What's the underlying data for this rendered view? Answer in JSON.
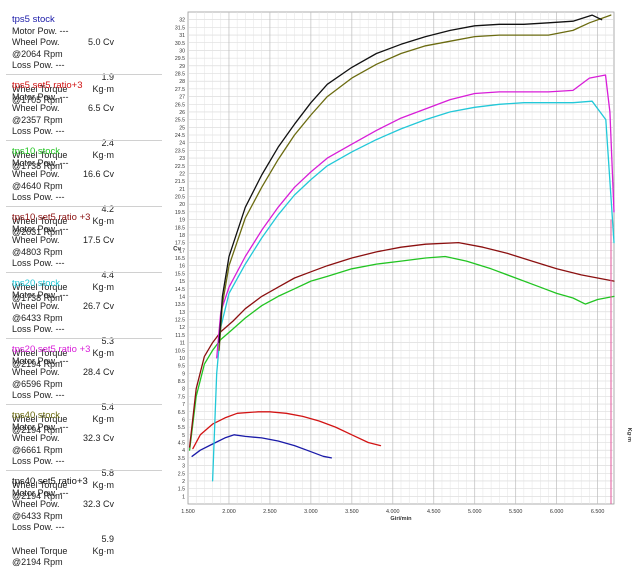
{
  "legend": [
    {
      "title": "tps5 stock",
      "color": "#1a1aa8",
      "motor": "Motor Pow.   ---",
      "wheel_val": "5.0 Cv",
      "wheel_rpm": "@2064 Rpm",
      "loss": "Loss Pow.   ---",
      "torque_val": "1.9 Kg·m",
      "torque_rpm": "@1705 Rpm"
    },
    {
      "title": "tps5 set5 ratio+3",
      "color": "#d21414",
      "motor": "Motor Pow.   ---",
      "wheel_val": "6.5 Cv",
      "wheel_rpm": "@2357 Rpm",
      "loss": "Loss Pow.   ---",
      "torque_val": "2.4 Kg·m",
      "torque_rpm": "@1738 Rpm"
    },
    {
      "title": "tps10 stock",
      "color": "#22c422",
      "motor": "Motor Pow.   ---",
      "wheel_val": "16.6 Cv",
      "wheel_rpm": "@4640 Rpm",
      "loss": "Loss Pow.   ---",
      "torque_val": "4.2 Kg·m",
      "torque_rpm": "@2031 Rpm"
    },
    {
      "title": "tps10 set5 ratio +3",
      "color": "#8b1010",
      "motor": "Motor Pow.   ---",
      "wheel_val": "17.5 Cv",
      "wheel_rpm": "@4803 Rpm",
      "loss": "Loss Pow.   ---",
      "torque_val": "4.4 Kg·m",
      "torque_rpm": "@1738 Rpm"
    },
    {
      "title": "tps20 stock",
      "color": "#22c8d8",
      "motor": "Motor Pow.   ---",
      "wheel_val": "26.7 Cv",
      "wheel_rpm": "@6433 Rpm",
      "loss": "Loss Pow.   ---",
      "torque_val": "5.3 Kg·m",
      "torque_rpm": "@2194 Rpm"
    },
    {
      "title": "tps20 set5 ratio +3",
      "color": "#d81ed8",
      "motor": "Motor Pow.   ---",
      "wheel_val": "28.4 Cv",
      "wheel_rpm": "@6596 Rpm",
      "loss": "Loss Pow.   ---",
      "torque_val": "5.4 Kg·m",
      "torque_rpm": "@2194 Rpm"
    },
    {
      "title": "tps40 stock",
      "color": "#6b6b10",
      "motor": "Motor Pow.   ---",
      "wheel_val": "32.3 Cv",
      "wheel_rpm": "@6661 Rpm",
      "loss": "Loss Pow.   ---",
      "torque_val": "5.8 Kg·m",
      "torque_rpm": "@2194 Rpm"
    },
    {
      "title": "tps40 set5 ratio+3",
      "color": "#111111",
      "motor": "Motor Pow.   ---",
      "wheel_val": "32.3 Cv",
      "wheel_rpm": "@6433 Rpm",
      "loss": "Loss Pow.   ---",
      "torque_val": "5.9 Kg·m",
      "torque_rpm": "@2194 Rpm"
    }
  ],
  "legend_labels": {
    "wheel": "Wheel Pow.",
    "torque": "Wheel Torque"
  },
  "chart_data": {
    "type": "line",
    "xlabel": "Giri/min",
    "ylabel_left": "Cv",
    "ylabel_right": "Kg·m",
    "xlim": [
      1500,
      6700
    ],
    "ylim": [
      0.5,
      32.5
    ],
    "x_ticks": [
      "1.500",
      "2.000",
      "2.500",
      "3.000",
      "3.500",
      "4.000",
      "4.500",
      "5.000",
      "5.500",
      "6.000",
      "6.500"
    ],
    "x_tick_values": [
      1500,
      2000,
      2500,
      3000,
      3500,
      4000,
      4500,
      5000,
      5500,
      6000,
      6500
    ],
    "y_ticks": [
      1,
      1.5,
      2,
      2.5,
      3,
      3.5,
      4,
      4.5,
      5,
      5.5,
      6,
      6.5,
      7,
      7.5,
      8,
      8.5,
      9,
      9.5,
      10,
      10.5,
      11,
      11.5,
      12,
      12.5,
      13,
      13.5,
      14,
      14.5,
      15,
      15.5,
      16,
      16.5,
      17,
      17.5,
      18,
      18.5,
      19,
      19.5,
      20,
      20.5,
      21,
      21.5,
      22,
      22.5,
      23,
      23.5,
      24,
      24.5,
      25,
      25.5,
      26,
      26.5,
      27,
      27.5,
      28,
      28.5,
      29,
      29.5,
      30,
      30.5,
      31,
      31.5,
      32
    ],
    "grid": true,
    "series": [
      {
        "name": "tps5 stock",
        "color": "#1a1aa8",
        "x": [
          1550,
          1650,
          1800,
          1950,
          2064,
          2200,
          2400,
          2600,
          2800,
          3000,
          3150,
          3250
        ],
        "y": [
          3.6,
          4.0,
          4.4,
          4.8,
          5.0,
          4.9,
          4.8,
          4.6,
          4.3,
          3.9,
          3.6,
          3.5
        ]
      },
      {
        "name": "tps5 set5 ratio+3",
        "color": "#d21414",
        "x": [
          1560,
          1650,
          1800,
          1950,
          2100,
          2357,
          2500,
          2700,
          2900,
          3100,
          3300,
          3500,
          3700,
          3850
        ],
        "y": [
          4.1,
          5.0,
          5.7,
          6.1,
          6.4,
          6.5,
          6.5,
          6.4,
          6.2,
          5.9,
          5.5,
          5.0,
          4.5,
          4.3
        ]
      },
      {
        "name": "tps10 stock",
        "color": "#22c422",
        "x": [
          1520,
          1600,
          1700,
          1800,
          1900,
          2031,
          2200,
          2400,
          2600,
          2800,
          3000,
          3200,
          3500,
          3800,
          4100,
          4400,
          4640,
          4900,
          5200,
          5500,
          5800,
          6000,
          6200,
          6350,
          6500,
          6700
        ],
        "y": [
          4.0,
          7.5,
          9.6,
          10.5,
          11.2,
          11.8,
          12.6,
          13.4,
          14.0,
          14.5,
          15.0,
          15.3,
          15.8,
          16.1,
          16.3,
          16.5,
          16.6,
          16.3,
          15.8,
          15.2,
          14.6,
          14.2,
          13.9,
          13.5,
          13.8,
          14.0
        ]
      },
      {
        "name": "tps10 set5 ratio +3",
        "color": "#8b1010",
        "x": [
          1520,
          1600,
          1700,
          1800,
          1900,
          2050,
          2200,
          2400,
          2600,
          2800,
          3000,
          3200,
          3500,
          3800,
          4100,
          4400,
          4803,
          5100,
          5400,
          5700,
          6000,
          6300,
          6500,
          6700
        ],
        "y": [
          4.2,
          8.0,
          10.1,
          11.0,
          11.7,
          12.4,
          13.2,
          14.0,
          14.6,
          15.2,
          15.6,
          16.0,
          16.5,
          16.9,
          17.2,
          17.4,
          17.5,
          17.2,
          16.8,
          16.3,
          15.8,
          15.4,
          15.2,
          15.0
        ]
      },
      {
        "name": "tps20 stock",
        "color": "#22c8d8",
        "x": [
          1800,
          1850,
          1900,
          2000,
          2200,
          2400,
          2600,
          2800,
          3000,
          3200,
          3500,
          3800,
          4100,
          4400,
          4700,
          5000,
          5300,
          5600,
          5900,
          6200,
          6433,
          6600,
          6700
        ],
        "y": [
          2.0,
          9.0,
          12.0,
          14.2,
          16.1,
          17.8,
          19.3,
          20.6,
          21.6,
          22.5,
          23.4,
          24.2,
          24.9,
          25.5,
          26.0,
          26.3,
          26.5,
          26.6,
          26.6,
          26.6,
          26.7,
          25.5,
          17.5
        ]
      },
      {
        "name": "tps20 set5 ratio +3",
        "color": "#d81ed8",
        "x": [
          1850,
          1900,
          2000,
          2200,
          2400,
          2600,
          2800,
          3000,
          3200,
          3500,
          3800,
          4100,
          4400,
          4700,
          5000,
          5300,
          5600,
          5900,
          6200,
          6400,
          6596,
          6650,
          6700
        ],
        "y": [
          10.0,
          13.0,
          14.6,
          16.6,
          18.3,
          19.8,
          21.1,
          22.1,
          23.0,
          23.9,
          24.8,
          25.6,
          26.2,
          26.8,
          27.2,
          27.3,
          27.3,
          27.3,
          27.4,
          28.2,
          28.4,
          26.0,
          19.5
        ]
      },
      {
        "name": "tps40 stock",
        "color": "#6b6b10",
        "x": [
          1880,
          1920,
          2000,
          2200,
          2400,
          2600,
          2800,
          3000,
          3200,
          3500,
          3800,
          4100,
          4400,
          4700,
          5000,
          5300,
          5600,
          5900,
          6200,
          6400,
          6661
        ],
        "y": [
          10.5,
          13.5,
          16.0,
          19.1,
          21.1,
          22.9,
          24.5,
          25.8,
          27.0,
          28.2,
          29.1,
          29.8,
          30.3,
          30.6,
          30.9,
          31.0,
          31.0,
          31.0,
          31.3,
          31.8,
          32.3
        ]
      },
      {
        "name": "tps40 set5 ratio+3",
        "color": "#111111",
        "x": [
          1880,
          1920,
          2000,
          2200,
          2400,
          2600,
          2800,
          3000,
          3200,
          3500,
          3800,
          4100,
          4400,
          4700,
          5000,
          5300,
          5600,
          5900,
          6200,
          6433,
          6550
        ],
        "y": [
          11.0,
          14.0,
          16.6,
          19.8,
          21.9,
          23.7,
          25.2,
          26.6,
          27.8,
          28.9,
          29.8,
          30.4,
          30.9,
          31.3,
          31.6,
          31.7,
          31.7,
          31.8,
          31.9,
          32.3,
          32.0
        ]
      }
    ]
  }
}
